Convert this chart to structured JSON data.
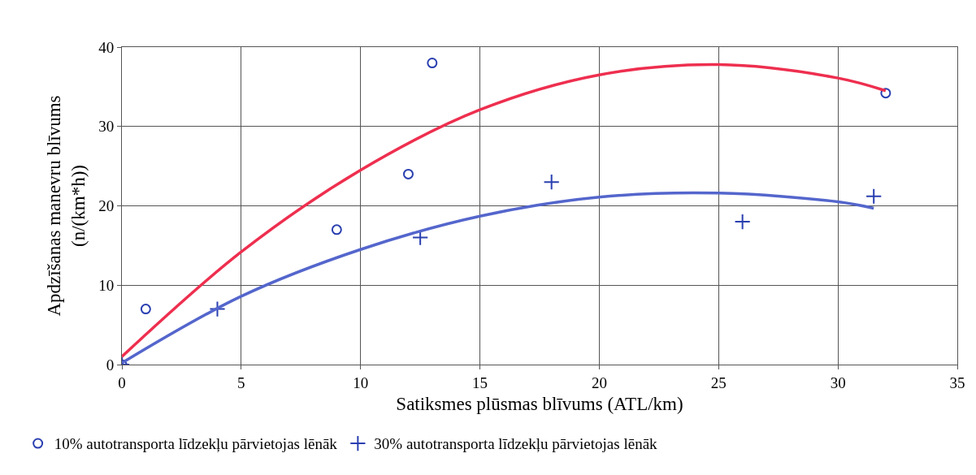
{
  "chart_data": {
    "type": "scatter",
    "xlabel": "Satiksmes plūsmas blīvums (ATL/km)",
    "ylabel": "Apdzīšanas manevru blīvums\n(n/(km*h))",
    "xlim": [
      0,
      35
    ],
    "xticks": [
      0,
      5,
      10,
      15,
      20,
      25,
      30,
      35
    ],
    "ylim": [
      0,
      40
    ],
    "yticks": [
      0,
      10,
      20,
      30,
      40
    ],
    "grid": true,
    "legend": "bottom",
    "series": [
      {
        "name": "10% autotransporta līdzekļu pārvietojas lēnāk",
        "color": "#2a3fb0",
        "marker": "circle",
        "x": [
          0,
          1,
          9,
          12,
          13,
          32
        ],
        "values": [
          0,
          7,
          17,
          24,
          38,
          34.2
        ]
      },
      {
        "name": "30% autotransporta līdzekļu pārvietojas lēnāk",
        "color": "#2a3fb0",
        "marker": "cross",
        "x": [
          0,
          4,
          12.5,
          18,
          26,
          31.5
        ],
        "values": [
          0,
          7,
          16,
          23,
          18,
          21.2
        ]
      },
      {
        "type": "line",
        "color": "#ee2f4f",
        "marker": "none",
        "line_style": "solid",
        "x": [
          0,
          5,
          10,
          15,
          20,
          25,
          30,
          32
        ],
        "values": [
          1,
          14.2,
          24.5,
          32.1,
          36.5,
          37.8,
          36.1,
          34.5
        ]
      },
      {
        "type": "line",
        "color": "#5466cc",
        "marker": "none",
        "line_style": "solid",
        "x": [
          0,
          5,
          10,
          15,
          20,
          25,
          30,
          31.5
        ],
        "values": [
          0.2,
          8.6,
          14.5,
          18.7,
          21.1,
          21.6,
          20.5,
          19.7
        ]
      }
    ]
  }
}
